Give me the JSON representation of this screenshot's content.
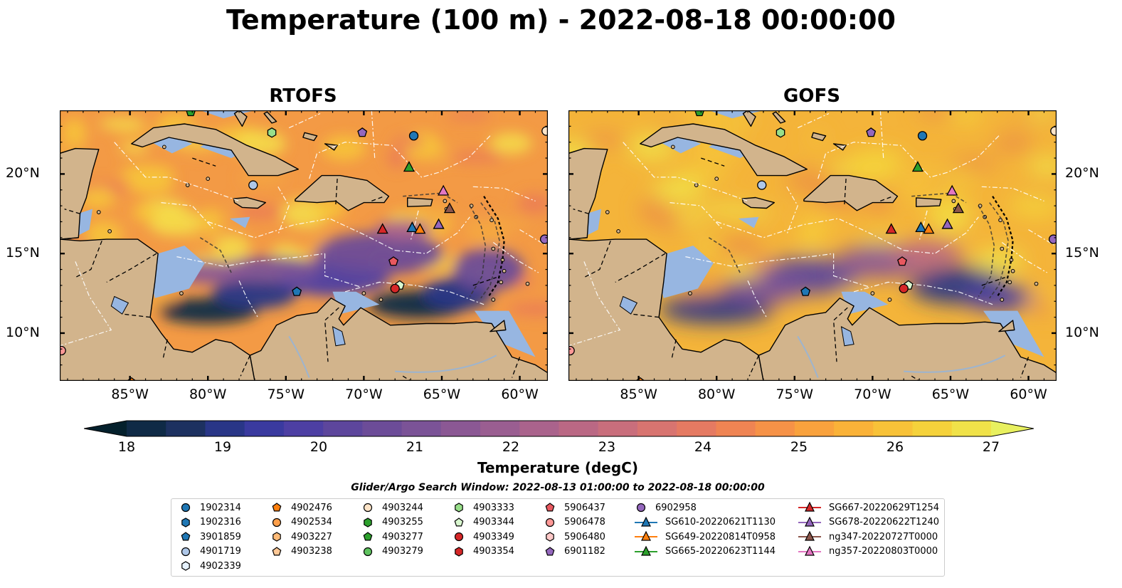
{
  "title": "Temperature (100 m) - 2022-08-18 00:00:00",
  "panels": [
    {
      "title": "RTOFS",
      "variant": "rtofs"
    },
    {
      "title": "GOFS",
      "variant": "gofs"
    }
  ],
  "axes": {
    "x_ticks": [
      "85°W",
      "80°W",
      "75°W",
      "70°W",
      "65°W",
      "60°W"
    ],
    "x_values": [
      -85,
      -80,
      -75,
      -70,
      -65,
      -60
    ],
    "y_ticks": [
      "20°N",
      "15°N",
      "10°N"
    ],
    "y_values": [
      20,
      15,
      10
    ],
    "lon_range": [
      -89.5,
      -58.2
    ],
    "lat_range": [
      7,
      24
    ]
  },
  "colorbar": {
    "label": "Temperature (degC)",
    "ticks": [
      "18",
      "19",
      "20",
      "21",
      "22",
      "23",
      "24",
      "25",
      "26",
      "27"
    ],
    "min": 18,
    "max": 27,
    "extend": "both",
    "colors": [
      "#04202c",
      "#0f2a46",
      "#1d3160",
      "#293687",
      "#3a3a9f",
      "#4d3fa3",
      "#5d469c",
      "#6c4c98",
      "#7b5397",
      "#8b5894",
      "#9a5e91",
      "#aa638c",
      "#ba6884",
      "#c96e7c",
      "#d87470",
      "#e57a62",
      "#ef8453",
      "#f69247",
      "#f9a23d",
      "#fab238",
      "#f8c238",
      "#f5d23b",
      "#f0e249",
      "#e8f05f"
    ]
  },
  "search_window": "Glider/Argo Search Window: 2022-08-13 01:00:00 to 2022-08-18 00:00:00",
  "colors": {
    "land": "#d2b48c",
    "shallow": "#97b6e1"
  },
  "legend": [
    {
      "label": "1902314",
      "marker": "circle",
      "color": "#1f77b4"
    },
    {
      "label": "1902316",
      "marker": "hexagon",
      "color": "#1f77b4"
    },
    {
      "label": "3901859",
      "marker": "pentagon",
      "color": "#1f77b4"
    },
    {
      "label": "4901719",
      "marker": "circle",
      "color": "#aec7e8"
    },
    {
      "label": "4902339",
      "marker": "hexagon",
      "color": "#e6f2ff"
    },
    {
      "label": "4902476",
      "marker": "pentagon",
      "color": "#ff7f0e"
    },
    {
      "label": "4902534",
      "marker": "circle",
      "color": "#ff9f4a"
    },
    {
      "label": "4903227",
      "marker": "hexagon",
      "color": "#ffbb78"
    },
    {
      "label": "4903238",
      "marker": "pentagon",
      "color": "#ffc896"
    },
    {
      "label": "4903244",
      "marker": "circle",
      "color": "#fde4c8"
    },
    {
      "label": "4903255",
      "marker": "hexagon",
      "color": "#2ca02c"
    },
    {
      "label": "4903277",
      "marker": "pentagon",
      "color": "#2ca02c"
    },
    {
      "label": "4903279",
      "marker": "circle",
      "color": "#5fc35f"
    },
    {
      "label": "4903333",
      "marker": "hexagon",
      "color": "#98df8a"
    },
    {
      "label": "4903344",
      "marker": "pentagon",
      "color": "#d9f7cf"
    },
    {
      "label": "4903349",
      "marker": "circle",
      "color": "#d62728"
    },
    {
      "label": "4903354",
      "marker": "hexagon",
      "color": "#d62728"
    },
    {
      "label": "5906437",
      "marker": "pentagon",
      "color": "#e8585f"
    },
    {
      "label": "5906478",
      "marker": "circle",
      "color": "#ff9896"
    },
    {
      "label": "5906480",
      "marker": "hexagon",
      "color": "#ffc9c8"
    },
    {
      "label": "6901182",
      "marker": "pentagon",
      "color": "#9467bd"
    },
    {
      "label": "6902958",
      "marker": "circle",
      "color": "#9467bd"
    },
    {
      "label": "SG610-20220621T1130",
      "marker": "triangle-line",
      "color": "#1f77b4"
    },
    {
      "label": "SG649-20220814T0958",
      "marker": "triangle-line",
      "color": "#ff7f0e"
    },
    {
      "label": "SG665-20220623T1144",
      "marker": "triangle-line",
      "color": "#2ca02c"
    },
    {
      "label": "SG667-20220629T1254",
      "marker": "triangle-line",
      "color": "#d62728"
    },
    {
      "label": "SG678-20220622T1240",
      "marker": "triangle-line",
      "color": "#9467bd"
    },
    {
      "label": "ng347-20220727T0000",
      "marker": "triangle-line",
      "color": "#8c564b"
    },
    {
      "label": "ng357-20220803T0000",
      "marker": "triangle-line",
      "color": "#e377c2"
    }
  ]
}
